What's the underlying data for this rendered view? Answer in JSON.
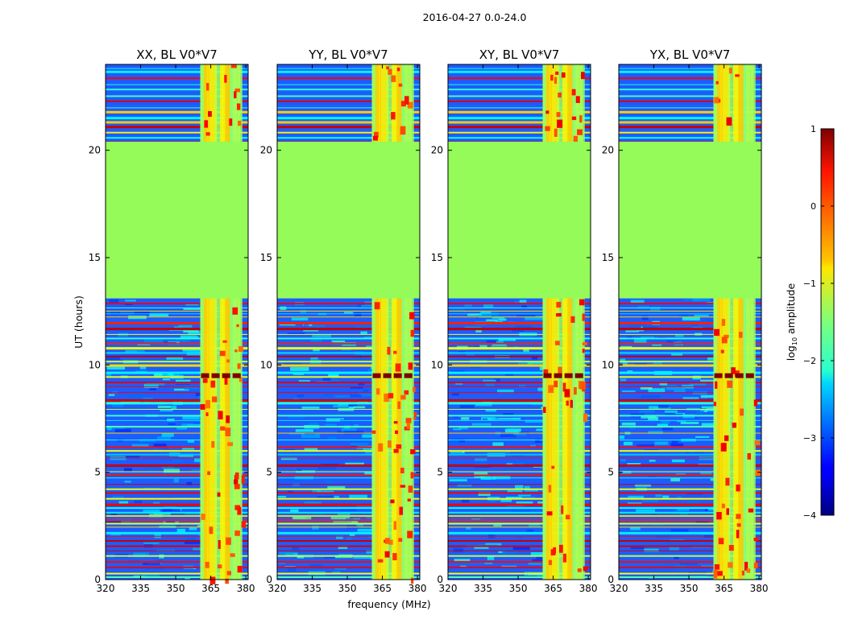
{
  "figure": {
    "suptitle": "2016-04-27 0.0-24.0",
    "xlabel": "frequency (MHz)",
    "ylabel": "UT (hours)"
  },
  "colors": {
    "background": "#ffffff",
    "fill_flagged": "#95fb58",
    "axis": "#000000"
  },
  "chart_data": {
    "type": "heatmap",
    "xlim": [
      320,
      381
    ],
    "ylim": [
      0,
      24
    ],
    "x_ticks": [
      320,
      335,
      350,
      365,
      380
    ],
    "y_ticks": [
      0,
      5,
      10,
      15,
      20
    ],
    "panels": [
      {
        "title": "XX, BL V0*V7",
        "polarization": "XX"
      },
      {
        "title": "YY, BL V0*V7",
        "polarization": "YY"
      },
      {
        "title": "XY, BL V0*V7",
        "polarization": "XY"
      },
      {
        "title": "YX, BL V0*V7",
        "polarization": "YX"
      }
    ],
    "flagged_ut_range": [
      13.1,
      20.4
    ],
    "rfi_band_mhz": [
      360.5,
      378.5
    ],
    "strong_rfi_time_ut": 9.5,
    "colorbar": {
      "label": "log10 amplitude",
      "label_base": "log",
      "label_sub": "10",
      "label_rest": " amplitude",
      "range": [
        -4,
        1
      ],
      "ticks": [
        1,
        0,
        -1,
        -2,
        -3,
        -4
      ],
      "tick_labels": [
        "1",
        "0",
        "−1",
        "−2",
        "−3",
        "−4"
      ]
    }
  }
}
